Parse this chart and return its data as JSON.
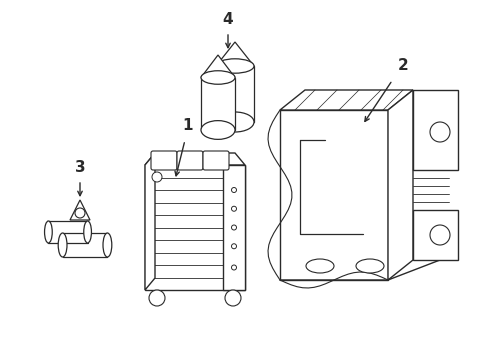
{
  "background_color": "#ffffff",
  "line_color": "#2a2a2a",
  "line_width": 1.0,
  "figsize": [
    4.89,
    3.6
  ],
  "dpi": 100
}
